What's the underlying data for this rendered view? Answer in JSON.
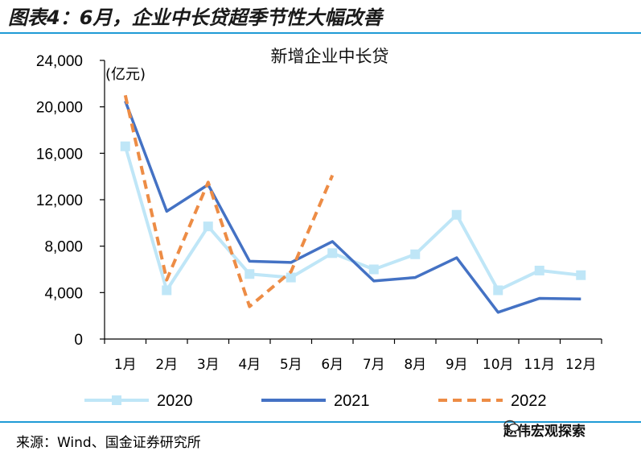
{
  "figure_title": "图表4：6月，企业中长贷超季节性大幅改善",
  "source_note": "来源：Wind、国金证券研究所",
  "brand": "赵伟宏观探索",
  "chart_data": {
    "type": "line",
    "title": "新增企业中长贷",
    "ylabel": "(亿元)",
    "xlabel": "",
    "ylim": [
      0,
      24000
    ],
    "yticks": [
      0,
      4000,
      8000,
      12000,
      16000,
      20000,
      24000
    ],
    "ytick_labels": [
      "0",
      "4,000",
      "8,000",
      "12,000",
      "16,000",
      "20,000",
      "24,000"
    ],
    "categories": [
      "1月",
      "2月",
      "3月",
      "4月",
      "5月",
      "6月",
      "7月",
      "8月",
      "9月",
      "10月",
      "11月",
      "12月"
    ],
    "grid": false,
    "legend_position": "bottom",
    "series": [
      {
        "name": "2020",
        "color": "#bfe6f7",
        "style": "solid-marker-square",
        "values": [
          16600,
          4200,
          9700,
          5600,
          5300,
          7400,
          6000,
          7300,
          10700,
          4200,
          5900,
          5500
        ]
      },
      {
        "name": "2021",
        "color": "#4472c4",
        "style": "solid",
        "values": [
          20500,
          11000,
          13300,
          6700,
          6600,
          8400,
          5000,
          5300,
          7000,
          2300,
          3500,
          3450
        ]
      },
      {
        "name": "2022",
        "color": "#ed8c45",
        "style": "dashed",
        "values": [
          21000,
          5100,
          13500,
          2800,
          5800,
          14100,
          null,
          null,
          null,
          null,
          null,
          null
        ]
      }
    ]
  }
}
